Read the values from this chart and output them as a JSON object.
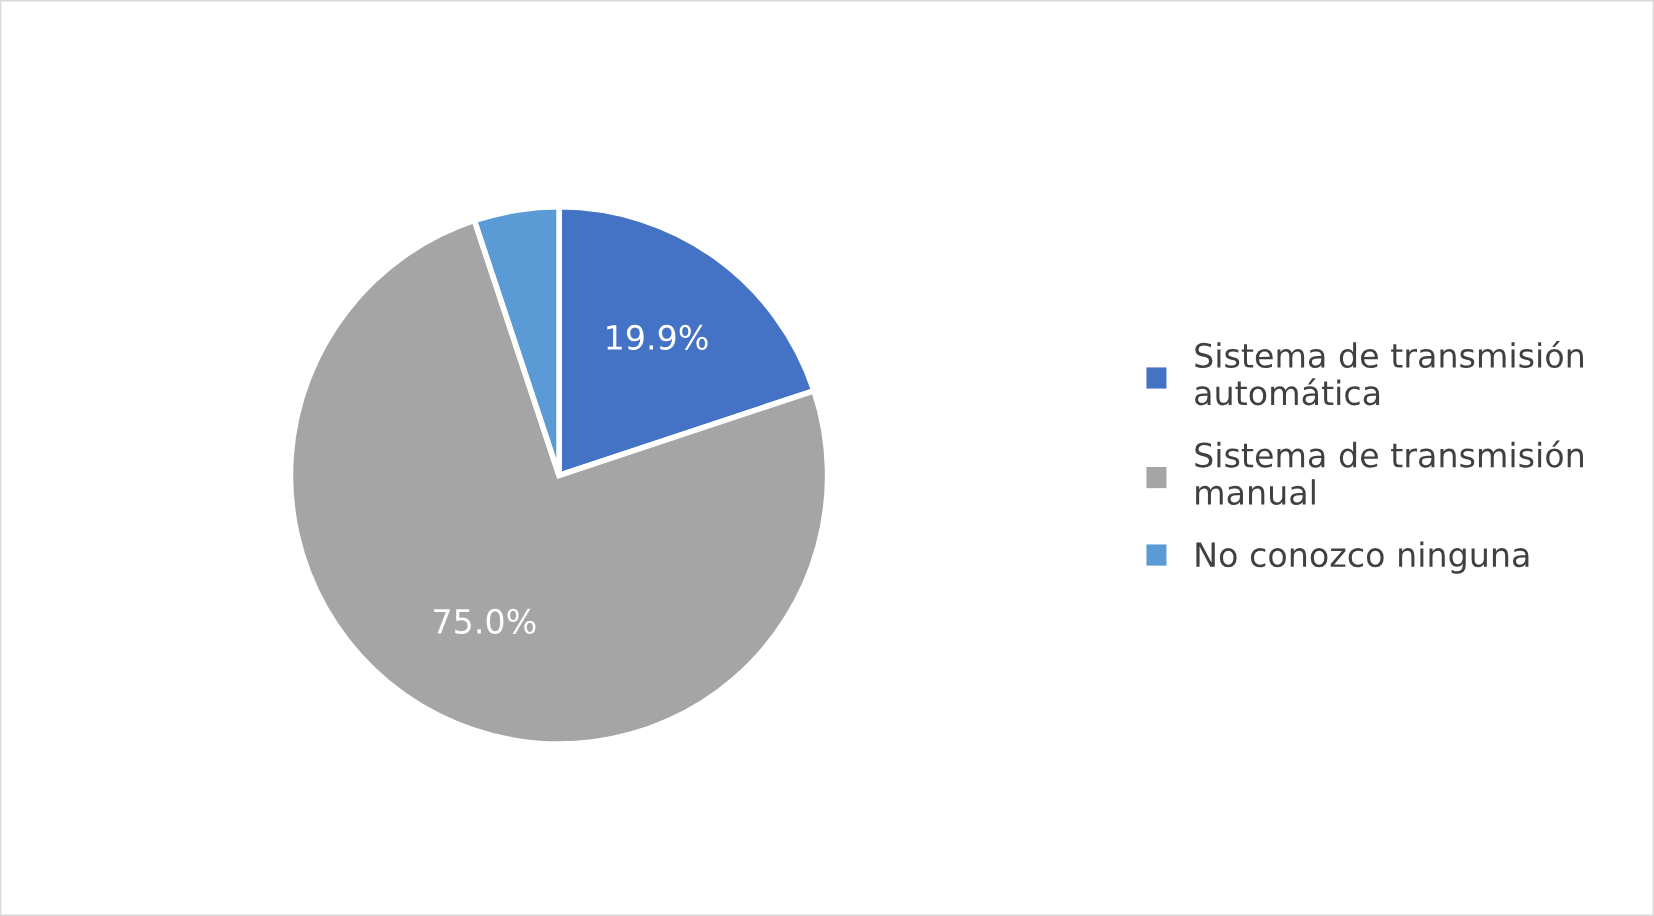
{
  "chart_data": {
    "type": "pie",
    "categories": [
      "Sistema de transmisión automática",
      "Sistema de transmisión manual",
      "No conozco ninguna"
    ],
    "values": [
      19.9,
      75.0,
      5.1
    ],
    "colors": [
      "#4472c4",
      "#a5a5a5",
      "#5b9bd5"
    ],
    "value_labels": [
      "19.9%",
      "75.0%",
      null
    ],
    "legend": "right"
  }
}
